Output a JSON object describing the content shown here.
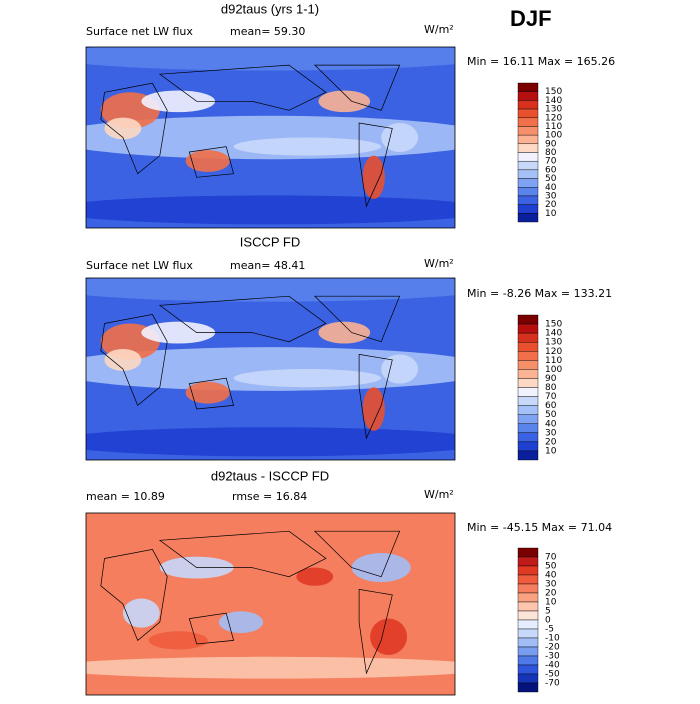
{
  "season": "DJF",
  "panels": [
    {
      "title": "d92taus (yrs 1-1)",
      "left_text": "Surface net LW flux",
      "mid_text": "mean=  59.30",
      "units": "W/m²",
      "minmax": "Min =  16.11 Max = 165.26",
      "colorbar_labels": [
        "150",
        "140",
        "130",
        "120",
        "110",
        "100",
        "90",
        "80",
        "70",
        "60",
        "50",
        "40",
        "30",
        "20",
        "10"
      ]
    },
    {
      "title": "ISCCP FD",
      "left_text": "Surface net LW flux",
      "mid_text": "mean=  48.41",
      "units": "W/m²",
      "minmax": "Min =  -8.26 Max = 133.21",
      "colorbar_labels": [
        "150",
        "140",
        "130",
        "120",
        "110",
        "100",
        "90",
        "80",
        "70",
        "60",
        "50",
        "40",
        "30",
        "20",
        "10"
      ]
    },
    {
      "title": "d92taus - ISCCP FD",
      "left_text": "mean =  10.89",
      "mid_text": "rmse =  16.84",
      "units": "W/m²",
      "minmax": "Min = -45.15 Max =  71.04",
      "colorbar_labels": [
        "70",
        "50",
        "40",
        "30",
        "20",
        "10",
        "5",
        "0",
        "-5",
        "-10",
        "-20",
        "-30",
        "-40",
        "-50",
        "-70"
      ]
    }
  ]
}
